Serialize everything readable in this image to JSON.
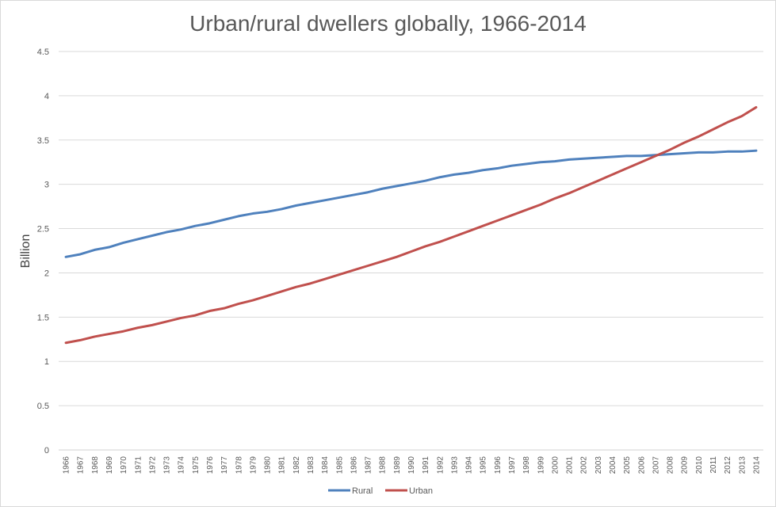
{
  "chart_data": {
    "type": "line",
    "title": "Urban/rural dwellers globally, 1966-2014",
    "xlabel": "",
    "ylabel": "Billion",
    "ylim": [
      0,
      4.5
    ],
    "yticks": [
      "0",
      "0.5",
      "1",
      "1.5",
      "2",
      "2.5",
      "3",
      "3.5",
      "4",
      "4.5"
    ],
    "grid": true,
    "legend_position": "bottom",
    "x": [
      "1966",
      "1967",
      "1968",
      "1969",
      "1970",
      "1971",
      "1972",
      "1973",
      "1974",
      "1975",
      "1976",
      "1977",
      "1978",
      "1979",
      "1980",
      "1981",
      "1982",
      "1983",
      "1984",
      "1985",
      "1986",
      "1987",
      "1988",
      "1989",
      "1990",
      "1991",
      "1992",
      "1993",
      "1994",
      "1995",
      "1996",
      "1997",
      "1998",
      "1999",
      "2000",
      "2001",
      "2002",
      "2003",
      "2004",
      "2005",
      "2006",
      "2007",
      "2008",
      "2009",
      "2010",
      "2011",
      "2012",
      "2013",
      "2014"
    ],
    "series": [
      {
        "name": "Rural",
        "color": "#4f81bd",
        "values": [
          2.18,
          2.21,
          2.26,
          2.29,
          2.34,
          2.38,
          2.42,
          2.46,
          2.49,
          2.53,
          2.56,
          2.6,
          2.64,
          2.67,
          2.69,
          2.72,
          2.76,
          2.79,
          2.82,
          2.85,
          2.88,
          2.91,
          2.95,
          2.98,
          3.01,
          3.04,
          3.08,
          3.11,
          3.13,
          3.16,
          3.18,
          3.21,
          3.23,
          3.25,
          3.26,
          3.28,
          3.29,
          3.3,
          3.31,
          3.32,
          3.32,
          3.33,
          3.34,
          3.35,
          3.36,
          3.36,
          3.37,
          3.37,
          3.38
        ]
      },
      {
        "name": "Urban",
        "color": "#c0504d",
        "values": [
          1.21,
          1.24,
          1.28,
          1.31,
          1.34,
          1.38,
          1.41,
          1.45,
          1.49,
          1.52,
          1.57,
          1.6,
          1.65,
          1.69,
          1.74,
          1.79,
          1.84,
          1.88,
          1.93,
          1.98,
          2.03,
          2.08,
          2.13,
          2.18,
          2.24,
          2.3,
          2.35,
          2.41,
          2.47,
          2.53,
          2.59,
          2.65,
          2.71,
          2.77,
          2.84,
          2.9,
          2.97,
          3.04,
          3.11,
          3.18,
          3.25,
          3.32,
          3.39,
          3.47,
          3.54,
          3.62,
          3.7,
          3.77,
          3.87
        ]
      }
    ]
  }
}
